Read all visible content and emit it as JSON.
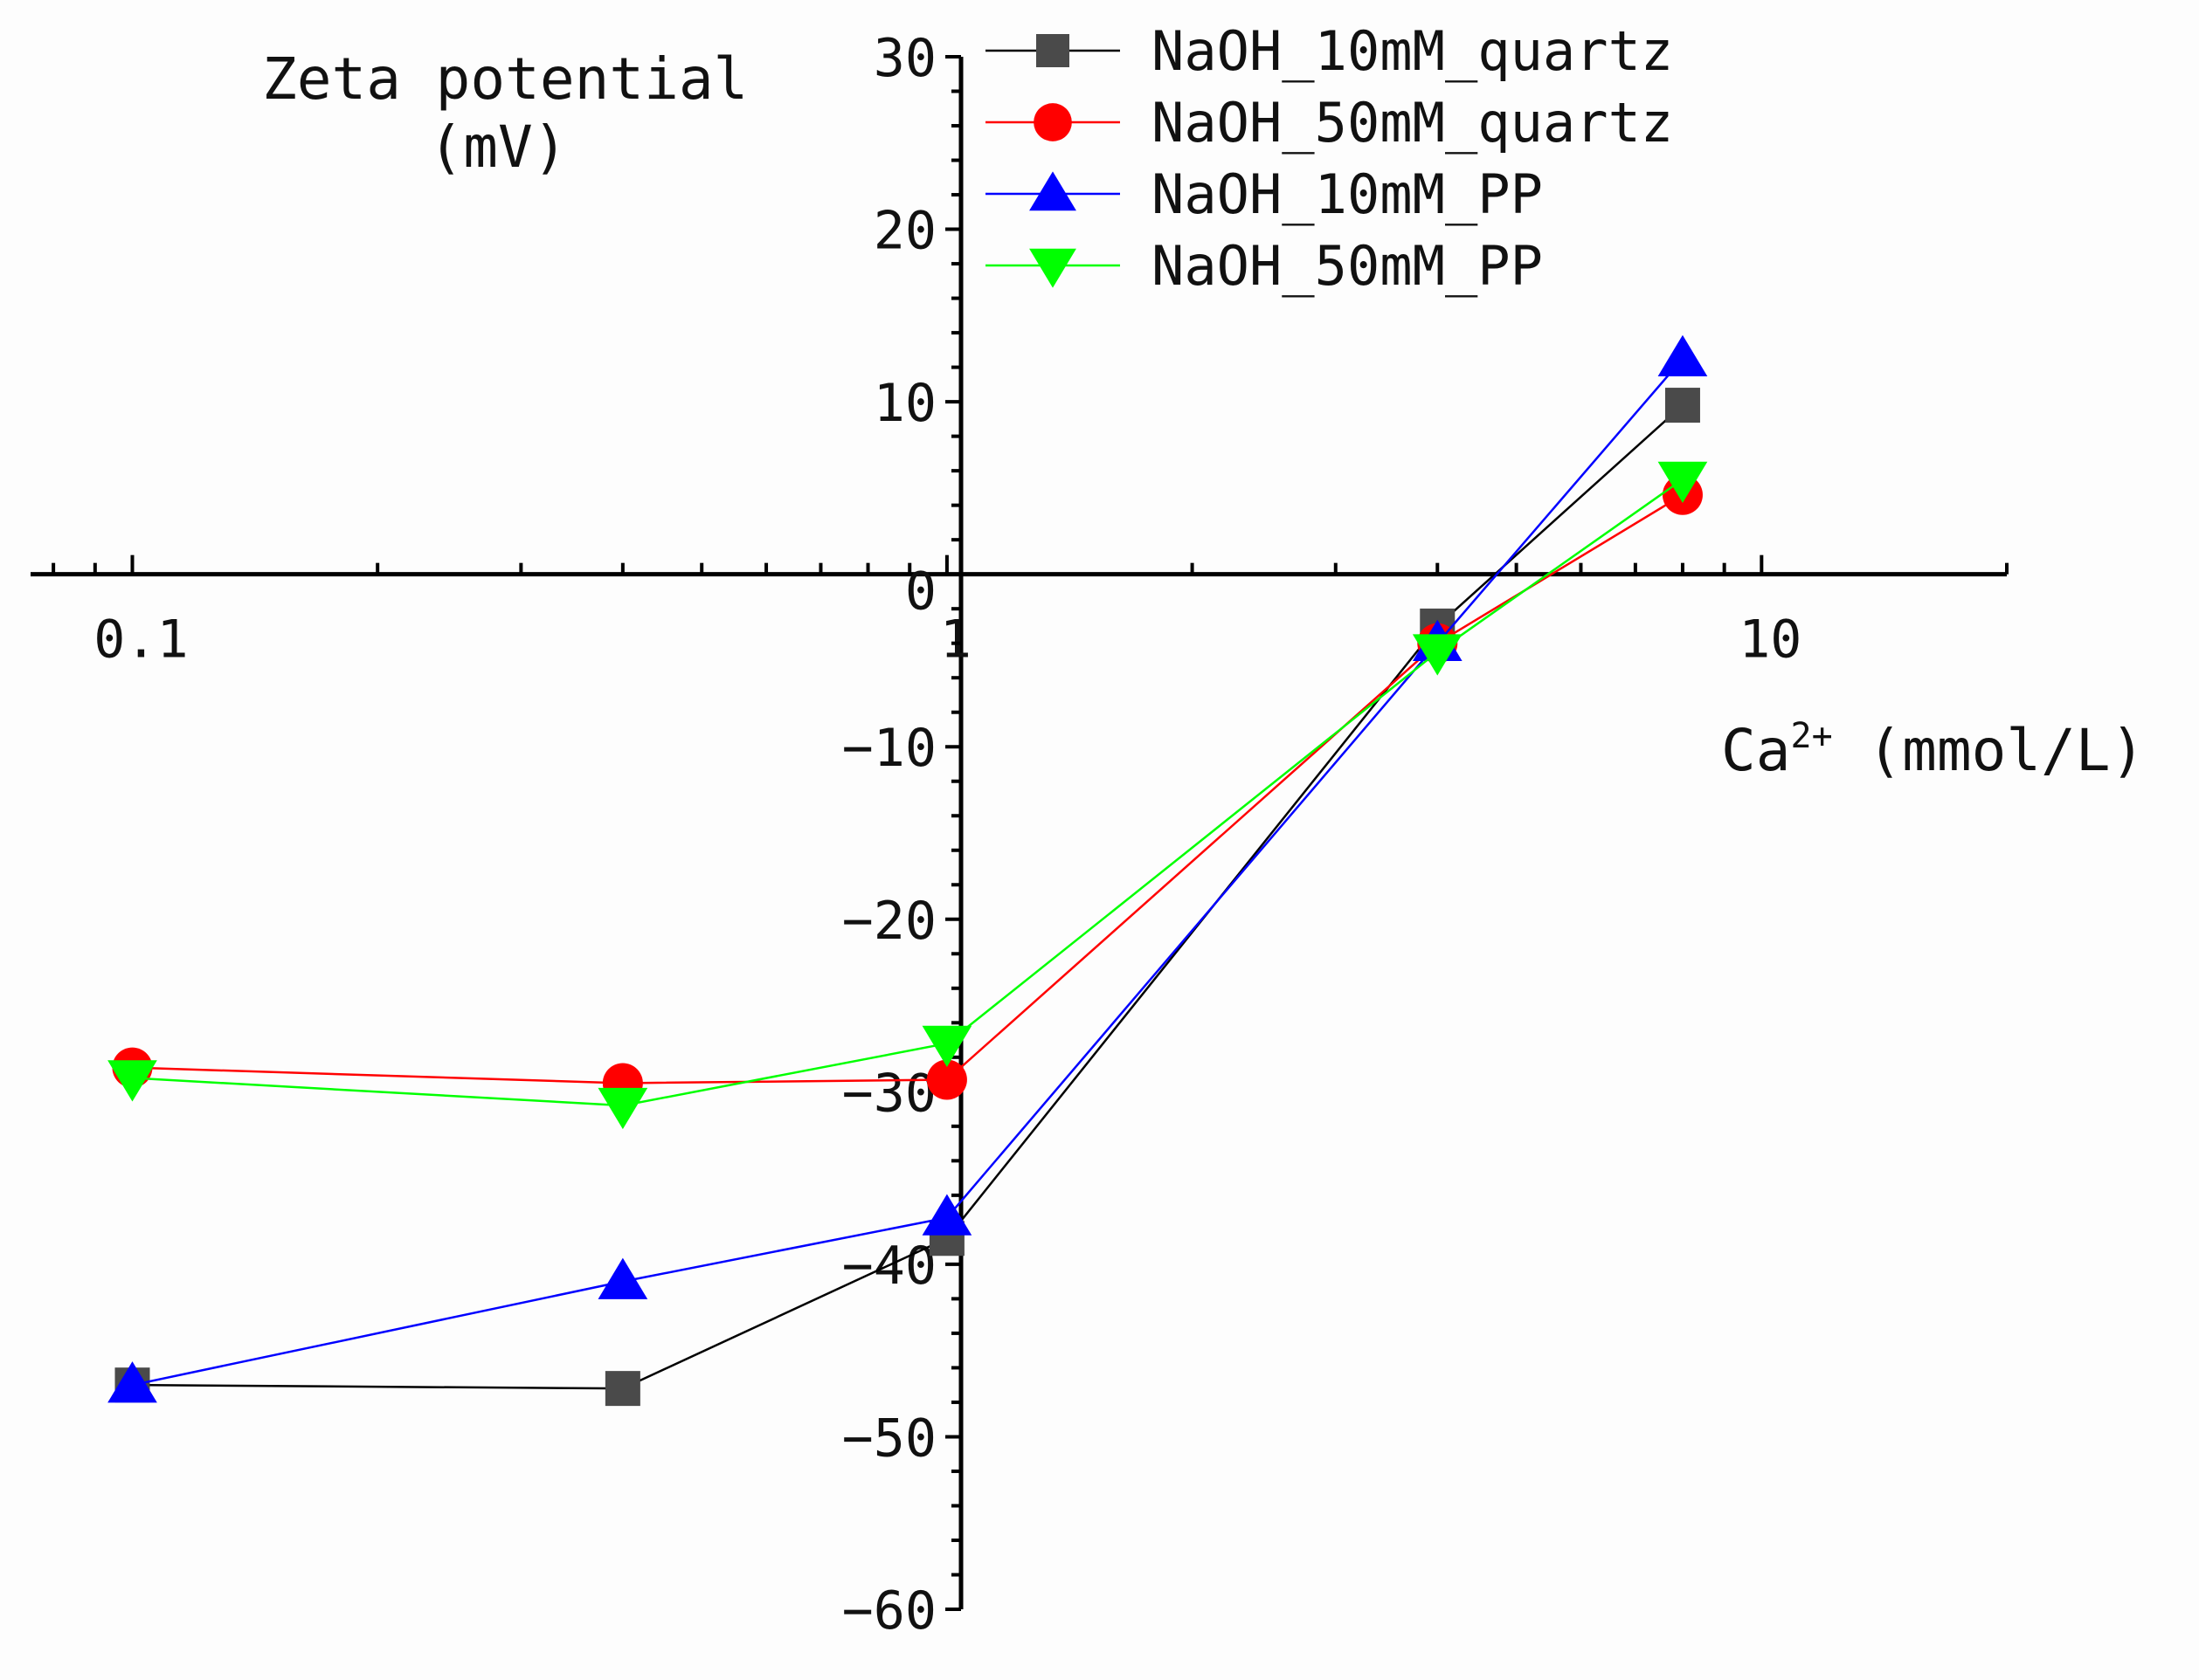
{
  "chart_data": {
    "type": "line",
    "title": "Zeta potential",
    "title_unit": "(mV)",
    "xlabel_base": "Ca",
    "xlabel_sup": "2+",
    "xlabel_unit": " (mmol/L)",
    "xscale": "log",
    "xlim": [
      0.075,
      20
    ],
    "ylim": [
      -60,
      30
    ],
    "x_ticks": [
      0.1,
      1,
      10
    ],
    "x_tick_labels": [
      "0.1",
      "1",
      "10"
    ],
    "y_ticks": [
      -60,
      -50,
      -40,
      -30,
      -20,
      -10,
      0,
      10,
      20,
      30
    ],
    "y_tick_labels": [
      "−60",
      "−50",
      "−40",
      "−30",
      "−20",
      "−10",
      "0",
      "10",
      "20",
      "30"
    ],
    "legend_position": "top-right",
    "x": [
      0.1,
      0.4,
      1,
      4,
      8
    ],
    "series": [
      {
        "name": "NaOH_10mM_quartz",
        "marker": "square",
        "color": "#000000",
        "marker_color": "#4a4a4a",
        "values": [
          -47.0,
          -47.2,
          -38.5,
          -3.0,
          9.8
        ]
      },
      {
        "name": "NaOH_50mM_quartz",
        "marker": "circle",
        "color": "#ff0000",
        "marker_color": "#ff0000",
        "values": [
          -28.6,
          -29.5,
          -29.3,
          -4.0,
          4.6
        ]
      },
      {
        "name": "NaOH_10mM_PP",
        "marker": "triangle-up",
        "color": "#0000ff",
        "marker_color": "#0000ff",
        "values": [
          -47.0,
          -41.0,
          -37.3,
          -4.0,
          12.5
        ]
      },
      {
        "name": "NaOH_50mM_PP",
        "marker": "triangle-down",
        "color": "#00ff00",
        "marker_color": "#00ff00",
        "values": [
          -29.2,
          -30.8,
          -27.2,
          -4.5,
          5.5
        ]
      }
    ]
  }
}
